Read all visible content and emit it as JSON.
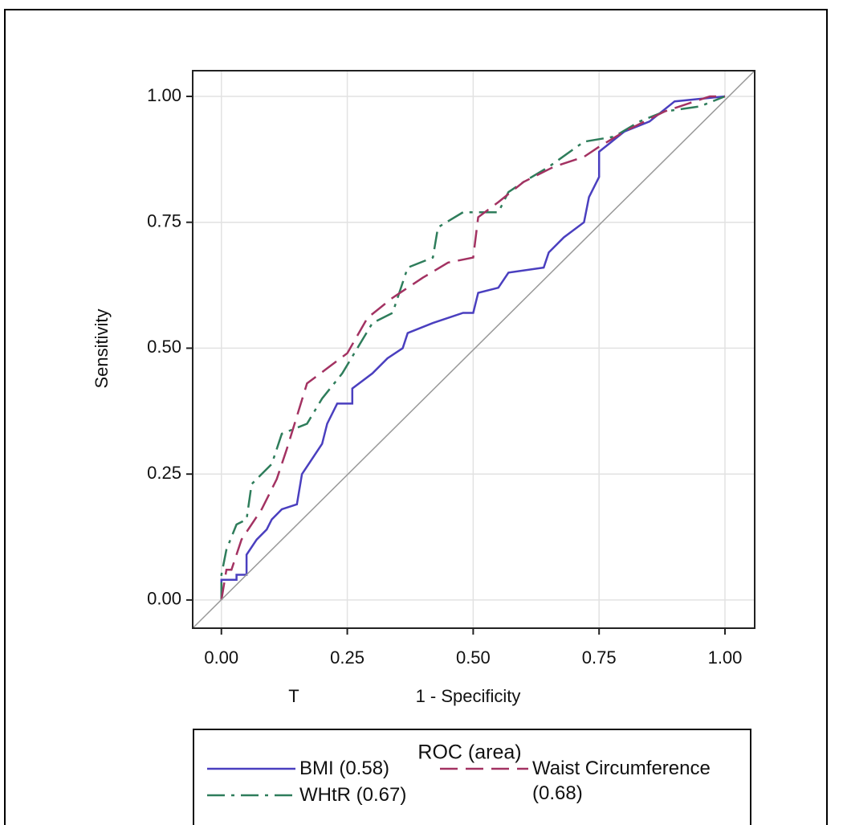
{
  "chart_data": {
    "type": "line",
    "ylabel": "Sensitivity",
    "xlabel": "1 - Specificity",
    "annotations": [
      "T"
    ],
    "legend_title": "ROC (area)",
    "xlim": [
      -0.057,
      1.059
    ],
    "ylim": [
      -0.056,
      1.051
    ],
    "xticks": [
      {
        "value": 0,
        "label": "0.00"
      },
      {
        "value": 0.25,
        "label": "0.25"
      },
      {
        "value": 0.5,
        "label": "0.50"
      },
      {
        "value": 0.75,
        "label": "0.75"
      },
      {
        "value": 1,
        "label": "1.00"
      }
    ],
    "yticks": [
      {
        "value": 0,
        "label": "0.00"
      },
      {
        "value": 0.25,
        "label": "0.25"
      },
      {
        "value": 0.5,
        "label": "0.50"
      },
      {
        "value": 0.75,
        "label": "0.75"
      },
      {
        "value": 1,
        "label": "1.00"
      }
    ],
    "grid": true,
    "series": [
      {
        "name": "BMI  (0.58)",
        "color": "#4a3fbf",
        "dash": "solid",
        "x": [
          0,
          0,
          0.03,
          0.03,
          0.05,
          0.05,
          0.07,
          0.09,
          0.1,
          0.12,
          0.15,
          0.16,
          0.2,
          0.21,
          0.23,
          0.26,
          0.26,
          0.3,
          0.33,
          0.36,
          0.37,
          0.42,
          0.48,
          0.5,
          0.51,
          0.55,
          0.57,
          0.64,
          0.65,
          0.68,
          0.72,
          0.73,
          0.75,
          0.75,
          0.8,
          0.85,
          0.9,
          1
        ],
        "values": [
          0,
          0.04,
          0.04,
          0.05,
          0.05,
          0.09,
          0.12,
          0.14,
          0.16,
          0.18,
          0.19,
          0.25,
          0.31,
          0.35,
          0.39,
          0.39,
          0.42,
          0.45,
          0.48,
          0.5,
          0.53,
          0.55,
          0.57,
          0.57,
          0.61,
          0.62,
          0.65,
          0.66,
          0.69,
          0.72,
          0.75,
          0.8,
          0.84,
          0.89,
          0.93,
          0.95,
          0.99,
          1
        ]
      },
      {
        "name": "WHtR (0.67)",
        "color": "#2e7d5b",
        "dash": "dashdot",
        "x": [
          0,
          0,
          0.01,
          0.03,
          0.05,
          0.06,
          0.1,
          0.12,
          0.17,
          0.2,
          0.24,
          0.27,
          0.3,
          0.34,
          0.37,
          0.42,
          0.43,
          0.48,
          0.55,
          0.57,
          0.6,
          0.65,
          0.72,
          0.78,
          0.83,
          0.88,
          0.95,
          1
        ],
        "values": [
          0,
          0.05,
          0.1,
          0.15,
          0.16,
          0.23,
          0.27,
          0.33,
          0.35,
          0.4,
          0.45,
          0.5,
          0.55,
          0.57,
          0.66,
          0.68,
          0.74,
          0.77,
          0.77,
          0.81,
          0.83,
          0.86,
          0.91,
          0.92,
          0.95,
          0.97,
          0.98,
          1
        ]
      },
      {
        "name": "Waist Circumference (0.68)",
        "color": "#a33262",
        "dash": "dashed",
        "x": [
          0,
          0.01,
          0.02,
          0.04,
          0.08,
          0.11,
          0.13,
          0.17,
          0.21,
          0.25,
          0.29,
          0.34,
          0.4,
          0.45,
          0.5,
          0.51,
          0.55,
          0.6,
          0.66,
          0.72,
          0.75,
          0.8,
          0.88,
          0.97,
          1
        ],
        "values": [
          0,
          0.06,
          0.06,
          0.12,
          0.18,
          0.24,
          0.3,
          0.43,
          0.46,
          0.49,
          0.56,
          0.6,
          0.64,
          0.67,
          0.68,
          0.76,
          0.79,
          0.83,
          0.86,
          0.88,
          0.9,
          0.93,
          0.97,
          1,
          1
        ]
      }
    ]
  }
}
